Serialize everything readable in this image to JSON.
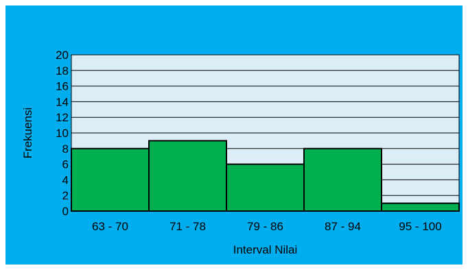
{
  "chart_data": {
    "type": "bar",
    "title": "",
    "xlabel": "Interval Nilai",
    "ylabel": "Frekuensi",
    "categories": [
      "63 - 70",
      "71 - 78",
      "79 - 86",
      "87 - 94",
      "95 - 100"
    ],
    "values": [
      8,
      9,
      6,
      8,
      1
    ],
    "ylim": [
      0,
      20
    ],
    "yticks": [
      "0",
      "2",
      "4",
      "6",
      "8",
      "10",
      "12",
      "14",
      "16",
      "18",
      "20"
    ],
    "grid": true,
    "legend": "none",
    "colors": {
      "background": "#00aeef",
      "plot_area": "#dbeef7",
      "bar_fill": "#00b050",
      "bar_stroke": "#000000",
      "grid": "#000000"
    }
  }
}
